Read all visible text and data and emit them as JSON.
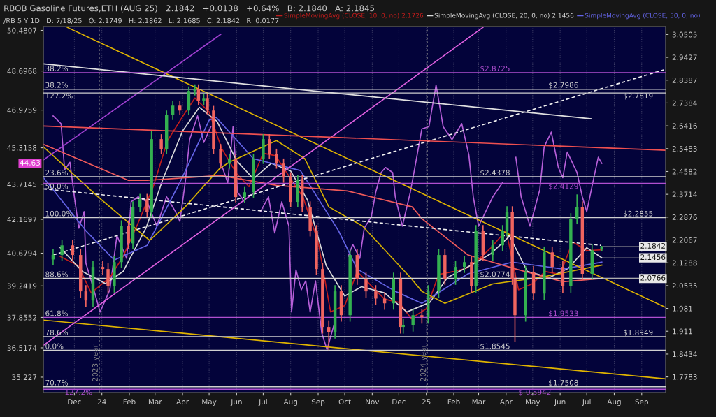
{
  "chart_data": {
    "type": "candlestick",
    "title": "RBOB Gasoline Futures,ETH (AUG 25)   2.1842   +0.0138   +0.64%   B: 2.1840   A: 2.1845",
    "subtitle": "/RB 5 Y 1D   D: 7/18/25   O: 2.1749   H: 2.1862   L: 2.1685   C: 2.1842   R: 0.0177",
    "x": [
      "2023-11-07",
      "2023-11-17",
      "2023-11-29",
      "2023-12-08",
      "2023-12-14",
      "2023-12-22",
      "2024-01-02",
      "2024-01-08",
      "2024-01-15",
      "2024-01-23",
      "2024-01-31",
      "2024-02-05",
      "2024-02-13",
      "2024-02-21",
      "2024-02-26",
      "2024-03-08",
      "2024-03-14",
      "2024-03-21",
      "2024-03-29",
      "2024-04-08",
      "2024-04-15",
      "2024-04-19",
      "2024-04-25",
      "2024-04-29",
      "2024-05-06",
      "2024-05-14",
      "2024-05-24",
      "2024-05-31",
      "2024-06-10",
      "2024-06-20",
      "2024-07-01",
      "2024-07-08",
      "2024-07-16",
      "2024-07-24",
      "2024-08-01",
      "2024-08-09",
      "2024-08-14",
      "2024-08-23",
      "2024-08-30",
      "2024-09-06",
      "2024-09-13",
      "2024-09-20",
      "2024-09-27",
      "2024-10-07",
      "2024-10-15",
      "2024-10-25",
      "2024-11-05",
      "2024-11-15",
      "2024-11-25",
      "2024-12-03",
      "2024-12-06",
      "2024-12-17",
      "2024-12-27",
      "2025-01-03",
      "2025-01-15",
      "2025-01-22",
      "2025-02-03",
      "2025-02-13",
      "2025-02-21",
      "2025-02-26",
      "2025-03-06",
      "2025-03-17",
      "2025-03-28",
      "2025-04-02",
      "2025-04-08",
      "2025-04-11",
      "2025-04-23",
      "2025-05-02",
      "2025-05-14",
      "2025-05-23",
      "2025-06-04",
      "2025-06-13",
      "2025-06-20",
      "2025-06-26",
      "2025-07-07",
      "2025-07-18"
    ],
    "ohlc": [
      [
        2.14,
        2.175,
        2.12,
        2.155
      ],
      [
        2.155,
        2.208,
        2.135,
        2.188
      ],
      [
        2.188,
        2.208,
        2.135,
        2.155
      ],
      [
        2.155,
        2.175,
        2.015,
        2.035
      ],
      [
        2.035,
        2.055,
        1.986,
        2.006
      ],
      [
        2.006,
        2.135,
        1.986,
        2.115
      ],
      [
        2.115,
        2.135,
        2.088,
        2.108
      ],
      [
        2.108,
        2.128,
        2.031,
        2.051
      ],
      [
        2.051,
        2.151,
        2.031,
        2.131
      ],
      [
        2.131,
        2.276,
        2.111,
        2.256
      ],
      [
        2.256,
        2.276,
        2.175,
        2.195
      ],
      [
        2.195,
        2.345,
        2.175,
        2.325
      ],
      [
        2.325,
        2.373,
        2.305,
        2.353
      ],
      [
        2.353,
        2.373,
        2.287,
        2.307
      ],
      [
        2.307,
        2.62,
        2.287,
        2.587
      ],
      [
        2.587,
        2.607,
        2.527,
        2.547
      ],
      [
        2.547,
        2.706,
        2.527,
        2.686
      ],
      [
        2.686,
        2.747,
        2.666,
        2.727
      ],
      [
        2.727,
        2.747,
        2.686,
        2.706
      ],
      [
        2.706,
        2.811,
        2.686,
        2.791
      ],
      [
        2.791,
        2.82,
        2.771,
        2.8
      ],
      [
        2.8,
        2.82,
        2.729,
        2.749
      ],
      [
        2.749,
        2.777,
        2.729,
        2.757
      ],
      [
        2.757,
        2.777,
        2.686,
        2.706
      ],
      [
        2.706,
        2.726,
        2.527,
        2.547
      ],
      [
        2.547,
        2.567,
        2.469,
        2.489
      ],
      [
        2.489,
        2.528,
        2.469,
        2.508
      ],
      [
        2.508,
        2.528,
        2.341,
        2.361
      ],
      [
        2.361,
        2.399,
        2.341,
        2.379
      ],
      [
        2.379,
        2.528,
        2.359,
        2.508
      ],
      [
        2.508,
        2.607,
        2.488,
        2.587
      ],
      [
        2.587,
        2.607,
        2.508,
        2.528
      ],
      [
        2.528,
        2.548,
        2.469,
        2.489
      ],
      [
        2.489,
        2.509,
        2.415,
        2.435
      ],
      [
        2.435,
        2.455,
        2.323,
        2.343
      ],
      [
        2.343,
        2.444,
        2.323,
        2.424
      ],
      [
        2.424,
        2.444,
        2.305,
        2.325
      ],
      [
        2.325,
        2.345,
        2.219,
        2.239
      ],
      [
        2.239,
        2.259,
        2.088,
        2.108
      ],
      [
        2.108,
        2.128,
        1.904,
        1.924
      ],
      [
        1.924,
        1.944,
        1.855,
        1.909
      ],
      [
        1.909,
        2.055,
        1.889,
        2.035
      ],
      [
        2.035,
        2.055,
        1.94,
        1.96
      ],
      [
        1.96,
        2.175,
        1.94,
        2.155
      ],
      [
        2.155,
        2.175,
        2.056,
        2.076
      ],
      [
        2.076,
        2.096,
        2.015,
        2.035
      ],
      [
        2.035,
        2.055,
        1.992,
        2.012
      ],
      [
        2.012,
        2.032,
        1.977,
        1.997
      ],
      [
        1.997,
        2.096,
        1.977,
        2.076
      ],
      [
        2.076,
        2.096,
        1.904,
        1.924
      ],
      [
        1.924,
        1.95,
        1.904,
        1.93
      ],
      [
        1.93,
        1.98,
        1.91,
        1.96
      ],
      [
        1.96,
        1.98,
        1.934,
        1.954
      ],
      [
        1.954,
        2.055,
        1.934,
        2.035
      ],
      [
        2.035,
        2.175,
        2.015,
        2.155
      ],
      [
        2.155,
        2.175,
        2.056,
        2.076
      ],
      [
        2.076,
        2.135,
        2.056,
        2.115
      ],
      [
        2.115,
        2.151,
        2.095,
        2.131
      ],
      [
        2.131,
        2.151,
        2.031,
        2.051
      ],
      [
        2.051,
        2.259,
        2.031,
        2.239
      ],
      [
        2.239,
        2.259,
        2.135,
        2.155
      ],
      [
        2.155,
        2.208,
        2.135,
        2.188
      ],
      [
        2.188,
        2.259,
        2.168,
        2.239
      ],
      [
        2.239,
        2.327,
        2.219,
        2.307
      ],
      [
        2.307,
        2.327,
        2.056,
        2.076
      ],
      [
        2.076,
        2.096,
        1.88,
        1.96
      ],
      [
        1.96,
        2.118,
        1.94,
        2.098
      ],
      [
        2.098,
        2.118,
        2.008,
        2.028
      ],
      [
        2.028,
        2.184,
        2.008,
        2.164
      ],
      [
        2.164,
        2.184,
        2.095,
        2.115
      ],
      [
        2.115,
        2.135,
        2.031,
        2.051
      ],
      [
        2.051,
        2.302,
        2.031,
        2.282
      ],
      [
        2.282,
        2.371,
        2.262,
        2.325
      ],
      [
        2.325,
        2.345,
        2.072,
        2.092
      ],
      [
        2.092,
        2.191,
        2.072,
        2.171
      ],
      [
        2.1749,
        2.1862,
        2.1685,
        2.1842
      ]
    ],
    "series": [
      {
        "type": "line",
        "color": "#c01c1c",
        "name": "SimpleMovingAvg (CLOSE, 10, 0, no) 2.1726",
        "x": [
          "2023-11-15",
          "2023-12-05",
          "2023-12-20",
          "2024-01-10",
          "2024-01-25",
          "2024-02-10",
          "2024-02-28",
          "2024-03-15",
          "2024-04-01",
          "2024-04-15",
          "2024-05-01",
          "2024-05-15",
          "2024-06-01",
          "2024-06-15",
          "2024-07-01",
          "2024-07-15",
          "2024-08-01",
          "2024-08-15",
          "2024-09-01",
          "2024-09-15",
          "2024-10-01",
          "2024-10-15",
          "2024-11-01",
          "2024-11-15",
          "2024-12-01",
          "2024-12-15",
          "2025-01-01",
          "2025-01-15",
          "2025-02-01",
          "2025-02-15",
          "2025-03-01",
          "2025-03-15",
          "2025-04-01",
          "2025-04-15",
          "2025-05-01",
          "2025-05-15",
          "2025-06-01",
          "2025-06-15",
          "2025-07-01",
          "2025-07-18"
        ],
        "values": [
          2.15,
          2.12,
          2.03,
          2.08,
          2.15,
          2.26,
          2.4,
          2.58,
          2.68,
          2.76,
          2.7,
          2.55,
          2.45,
          2.4,
          2.53,
          2.52,
          2.43,
          2.36,
          2.2,
          1.97,
          1.99,
          2.1,
          2.05,
          2.01,
          2.0,
          1.95,
          1.98,
          2.09,
          2.1,
          2.11,
          2.14,
          2.18,
          2.24,
          2.04,
          2.06,
          2.1,
          2.09,
          2.2,
          2.17,
          2.1726
        ]
      },
      {
        "type": "line",
        "color": "#d8d8d8",
        "name": "SimpleMovingAvg (CLOSE, 20, 0, no) 2.1456",
        "x": [
          "2023-11-15",
          "2023-12-10",
          "2024-01-05",
          "2024-01-25",
          "2024-02-20",
          "2024-03-10",
          "2024-04-01",
          "2024-04-20",
          "2024-05-10",
          "2024-06-01",
          "2024-06-20",
          "2024-07-10",
          "2024-08-01",
          "2024-08-20",
          "2024-09-10",
          "2024-10-01",
          "2024-10-20",
          "2024-11-15",
          "2024-12-10",
          "2025-01-05",
          "2025-01-25",
          "2025-02-20",
          "2025-03-15",
          "2025-04-05",
          "2025-04-25",
          "2025-05-20",
          "2025-06-10",
          "2025-07-01",
          "2025-07-18"
        ],
        "values": [
          2.18,
          2.1,
          2.06,
          2.1,
          2.25,
          2.43,
          2.62,
          2.72,
          2.66,
          2.5,
          2.43,
          2.49,
          2.46,
          2.35,
          2.12,
          2.02,
          2.05,
          2.03,
          1.97,
          2.0,
          2.08,
          2.12,
          2.16,
          2.22,
          2.1,
          2.08,
          2.11,
          2.18,
          2.1456
        ]
      },
      {
        "type": "line",
        "color": "#6464e6",
        "name": "SimpleMovingAvg (CLOSE, 50, 0, no)",
        "x": [
          "2023-10-27",
          "2023-12-14",
          "2024-01-15",
          "2024-02-21",
          "2024-03-29",
          "2024-05-01",
          "2024-05-09",
          "2024-06-20",
          "2024-08-12",
          "2024-09-24",
          "2024-10-15",
          "2024-11-27",
          "2024-12-27",
          "2025-02-17",
          "2025-04-08",
          "2025-06-04",
          "2025-07-18"
        ],
        "values": [
          2.435,
          2.239,
          2.138,
          2.188,
          2.416,
          2.665,
          2.677,
          2.508,
          2.462,
          2.239,
          2.108,
          2.035,
          1.997,
          2.092,
          2.131,
          2.108,
          2.131
        ]
      },
      {
        "type": "line",
        "color": "#f05a5a",
        "x": [
          "2023-10-27",
          "2024-01-31",
          "2024-02-21",
          "2024-05-13",
          "2024-07-16",
          "2024-10-04",
          "2024-12-16",
          "2024-12-27",
          "2025-02-17",
          "2025-04-12",
          "2025-06-04",
          "2025-07-18"
        ],
        "values": [
          2.566,
          2.424,
          2.424,
          2.443,
          2.405,
          2.384,
          2.325,
          2.282,
          2.155,
          2.108,
          2.066,
          2.0766
        ]
      },
      {
        "type": "line",
        "color": "#d4b000",
        "x": [
          "2023-10-27",
          "2023-12-28",
          "2024-02-24",
          "2024-04-04",
          "2024-05-13",
          "2024-05-24",
          "2024-07-16",
          "2024-08-17",
          "2024-09-13",
          "2024-10-21",
          "2024-12-14",
          "2024-12-27",
          "2025-01-22",
          "2025-03-17",
          "2025-05-09",
          "2025-07-18"
        ],
        "values": [
          2.556,
          2.361,
          2.205,
          2.325,
          2.47,
          2.495,
          2.581,
          2.508,
          2.325,
          2.256,
          2.08,
          2.035,
          1.997,
          2.059,
          2.08,
          2.121
        ]
      },
      {
        "type": "line",
        "color": "#e0b400",
        "x": [
          "2023-11-23",
          "2025-09-28"
        ],
        "values": [
          3.085,
          1.984
        ]
      },
      {
        "type": "line",
        "color": "#e0b400",
        "x": [
          "2023-10-27",
          "2025-09-28"
        ],
        "values": [
          1.945,
          1.773
        ]
      },
      {
        "type": "line",
        "color": "#e060e0",
        "x": [
          "2023-10-27",
          "2025-03-06"
        ],
        "values": [
          1.869,
          3.085
        ]
      },
      {
        "type": "line",
        "color": "#a040d0",
        "x": [
          "2023-10-27",
          "2024-05-14"
        ],
        "values": [
          2.503,
          3.051
        ]
      },
      {
        "type": "line",
        "color": "#f0f0f0",
        "line_style": "dashed",
        "x": [
          "2023-11-07",
          "2025-09-28"
        ],
        "values": [
          2.155,
          2.888
        ]
      },
      {
        "type": "line",
        "color": "#f0f0f0",
        "line_style": "dashed",
        "x": [
          "2023-10-27",
          "2025-07-17"
        ],
        "values": [
          2.392,
          2.188
        ]
      },
      {
        "type": "line",
        "color": "#f05050",
        "x": [
          "2023-10-27",
          "2025-09-28"
        ],
        "values": [
          2.641,
          2.542
        ]
      },
      {
        "type": "line",
        "color": "#e0e0e0",
        "x": [
          "2023-10-27",
          "2025-07-06"
        ],
        "values": [
          2.913,
          2.671
        ]
      },
      {
        "type": "line",
        "axis": "y2",
        "color": "#b65fd8",
        "x": [
          "2023-11-07",
          "2023-11-16",
          "2023-11-20",
          "2023-11-26",
          "2023-12-01",
          "2023-12-06",
          "2023-12-12",
          "2023-12-14",
          "2023-12-23",
          "2023-12-30",
          "2024-01-10",
          "2024-01-18",
          "2024-01-29",
          "2024-02-03",
          "2024-02-11",
          "2024-02-21",
          "2024-03-03",
          "2024-03-14",
          "2024-03-24",
          "2024-03-29",
          "2024-04-04",
          "2024-04-09",
          "2024-04-18",
          "2024-04-25",
          "2024-05-03",
          "2024-05-06",
          "2024-05-14",
          "2024-05-22",
          "2024-05-28",
          "2024-06-02",
          "2024-06-10",
          "2024-06-20",
          "2024-06-28",
          "2024-07-07",
          "2024-07-14",
          "2024-07-22",
          "2024-07-30",
          "2024-08-02",
          "2024-08-07",
          "2024-08-13",
          "2024-08-18",
          "2024-08-23",
          "2024-08-29",
          "2024-09-05",
          "2024-09-11",
          "2024-09-19",
          "2024-09-27",
          "2024-10-05",
          "2024-10-10",
          "2024-10-18",
          "2024-10-23",
          "2024-10-31",
          "2024-11-05",
          "2024-11-11",
          "2024-11-16",
          "2024-11-24",
          "2024-11-27",
          "2024-12-05",
          "2024-12-14",
          "2024-12-17",
          "2024-12-27",
          "2025-01-04",
          "2025-01-12",
          "2025-01-20",
          "2025-01-30",
          "2025-02-10",
          "2025-02-18",
          "2025-02-23",
          "2025-03-01",
          "2025-03-09",
          "2025-03-17",
          "2025-03-28",
          "2025-04-02",
          "2025-04-08",
          "2025-04-12",
          "2025-04-18",
          "2025-04-28",
          "2025-05-09",
          "2025-05-14",
          "2025-05-22",
          "2025-05-30",
          "2025-06-04",
          "2025-06-09",
          "2025-06-20",
          "2025-06-26",
          "2025-07-01",
          "2025-07-09",
          "2025-07-14",
          "2025-07-18"
        ],
        "values": [
          46.72,
          46.38,
          44.35,
          44.68,
          43.16,
          41.78,
          42.51,
          40.24,
          39.07,
          38.09,
          39.07,
          41.45,
          40.45,
          42.94,
          43.16,
          42.94,
          41.87,
          43.16,
          42.51,
          42.08,
          43.78,
          45.68,
          46.72,
          45.55,
          46.25,
          null,
          44.68,
          43.78,
          46.25,
          43.37,
          42.94,
          null,
          42.51,
          43.16,
          41.57,
          42.94,
          41.87,
          38.09,
          39.95,
          39.07,
          39.46,
          38.09,
          39.46,
          37.18,
          36.44,
          37.55,
          null,
          40.54,
          41.07,
          40.45,
          41.78,
          42.29,
          43.37,
          44.23,
          44.45,
          44.23,
          43.16,
          41.87,
          43.37,
          44.0,
          46.15,
          46.25,
          48.08,
          46.25,
          45.68,
          46.38,
          45.0,
          43.16,
          41.87,
          42.51,
          43.16,
          43.78,
          null,
          null,
          44.9,
          43.16,
          41.87,
          43.47,
          45.36,
          46.01,
          44.45,
          44.0,
          45.13,
          44.23,
          43.16,
          42.51,
          44.0,
          44.9,
          44.63
        ]
      }
    ],
    "xlim": [
      "2023-10-27",
      "2025-09-28"
    ],
    "xticks": [
      {
        "value": "2023-12-01",
        "label": "Dec"
      },
      {
        "value": "2024-01-01",
        "label": "24"
      },
      {
        "value": "2024-02-01",
        "label": "Feb"
      },
      {
        "value": "2024-03-01",
        "label": "Mar"
      },
      {
        "value": "2024-04-01",
        "label": "Apr"
      },
      {
        "value": "2024-05-01",
        "label": "May"
      },
      {
        "value": "2024-06-01",
        "label": "Jun"
      },
      {
        "value": "2024-07-01",
        "label": "Jul"
      },
      {
        "value": "2024-08-01",
        "label": "Aug"
      },
      {
        "value": "2024-09-01",
        "label": "Sep"
      },
      {
        "value": "2024-10-01",
        "label": "Oct"
      },
      {
        "value": "2024-11-01",
        "label": "Nov"
      },
      {
        "value": "2024-12-01",
        "label": "Dec"
      },
      {
        "value": "2025-01-01",
        "label": "25"
      },
      {
        "value": "2025-02-01",
        "label": "Feb"
      },
      {
        "value": "2025-03-01",
        "label": "Mar"
      },
      {
        "value": "2025-04-01",
        "label": "Apr"
      },
      {
        "value": "2025-05-01",
        "label": "May"
      },
      {
        "value": "2025-06-01",
        "label": "Jun"
      },
      {
        "value": "2025-07-01",
        "label": "Jul"
      },
      {
        "value": "2025-08-01",
        "label": "Aug"
      },
      {
        "value": "2025-09-01",
        "label": "Sep"
      }
    ],
    "ylim": [
      1.735,
      3.089
    ],
    "yticks": [
      3.0505,
      2.9427,
      2.8387,
      2.7384,
      2.6416,
      2.5483,
      2.4582,
      2.3714,
      2.2876,
      2.2067,
      2.1288,
      2.0535,
      1.981,
      1.911,
      1.8434,
      1.7783
    ],
    "y2lim": [
      34.55,
      50.65
    ],
    "y2ticks": [
      50.4807,
      48.6968,
      46.9759,
      45.3158,
      43.7145,
      42.1697,
      40.6794,
      39.2419,
      37.8552,
      36.5174,
      35.227
    ],
    "log": true,
    "grid": "x",
    "legend": "top",
    "ref_lines": [
      {
        "axis": "y",
        "value": 2.8725,
        "label": "$2.8725",
        "color": "#b04fd0"
      },
      {
        "axis": "y",
        "value": 2.7986,
        "label": "$2.7986",
        "color": "#d0d0d0"
      },
      {
        "axis": "y",
        "value": 2.7819,
        "label": "$2.7819",
        "color": "#d0d0d0"
      },
      {
        "axis": "y",
        "value": 2.4378,
        "label": "$2.4378",
        "color": "#d0d0d0"
      },
      {
        "axis": "y",
        "value": 2.4129,
        "label": "$2.4129",
        "color": "#b04fd0"
      },
      {
        "axis": "y",
        "value": 2.2855,
        "label": "$2.2855",
        "color": "#d0d0d0"
      },
      {
        "axis": "y",
        "value": 2.0774,
        "label": "$2.0774",
        "color": "#d0d0d0"
      },
      {
        "axis": "y",
        "value": 1.9533,
        "label": "$1.9533",
        "color": "#b04fd0"
      },
      {
        "axis": "y",
        "value": 1.8949,
        "label": "$1.8949",
        "color": "#d0d0d0"
      },
      {
        "axis": "y",
        "value": 1.8545,
        "label": "$1.8545",
        "color": "#d0d0d0"
      },
      {
        "axis": "y",
        "value": 1.7508,
        "label": "$1.7508",
        "color": "#d0d0d0"
      },
      {
        "axis": "y",
        "value": 1.744,
        "color": "#b04fd0"
      },
      {
        "axis": "x",
        "value": "2023-12-29",
        "label": "2023 year",
        "color": "#8c8c8c",
        "line_style": "dotted"
      },
      {
        "axis": "x",
        "value": "2025-01-02",
        "label": "2024 year",
        "color": "#8c8c8c",
        "line_style": "dotted"
      }
    ],
    "annotations": [
      {
        "text": "38.2%",
        "x": "2023-10-29",
        "y": 2.8725
      },
      {
        "text": "38.2%",
        "x": "2023-10-29",
        "y": 2.7986
      },
      {
        "text": "127.2%",
        "x": "2023-10-29",
        "y": 2.7819
      },
      {
        "text": "23.6%",
        "x": "2023-10-29",
        "y": 2.4378
      },
      {
        "text": "50.0%",
        "x": "2023-10-29",
        "y": 2.4129
      },
      {
        "text": "100.0%",
        "x": "2023-10-29",
        "y": 2.2855
      },
      {
        "text": "88.6%",
        "x": "2023-10-29",
        "y": 2.0774
      },
      {
        "text": "61.8%",
        "x": "2023-10-29",
        "y": 1.9533
      },
      {
        "text": "78.6%",
        "x": "2023-10-29",
        "y": 1.8949
      },
      {
        "text": "0.0%",
        "x": "2023-10-29",
        "y": 1.8545
      },
      {
        "text": "70.7%",
        "x": "2023-10-29",
        "y": 1.7508
      },
      {
        "text": "127.2%",
        "x": "2023-11-20",
        "y": 1.744
      },
      {
        "text": "$-0.5942",
        "x": "2025-04-15",
        "y": 1.744
      },
      {
        "text": "2.1842",
        "x": "2025-07-18",
        "y": 2.1842
      },
      {
        "text": "2.1456",
        "x": "2025-07-18",
        "y": 2.1456
      },
      {
        "text": "2.0766",
        "x": "2025-07-18",
        "y": 2.0766
      },
      "44.63"
    ]
  }
}
